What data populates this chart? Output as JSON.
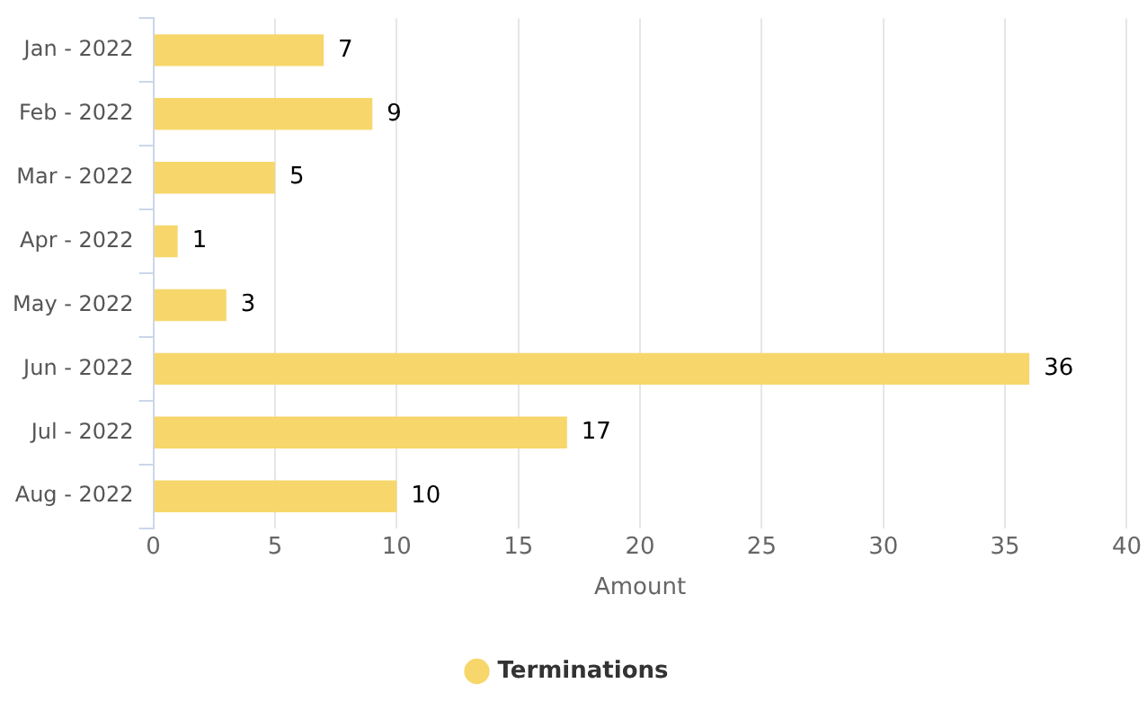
{
  "chart_data": {
    "type": "bar",
    "orientation": "horizontal",
    "categories": [
      "Jan - 2022",
      "Feb - 2022",
      "Mar - 2022",
      "Apr - 2022",
      "May - 2022",
      "Jun - 2022",
      "Jul - 2022",
      "Aug - 2022"
    ],
    "series": [
      {
        "name": "Terminations",
        "color": "#f7d76b",
        "values": [
          7,
          9,
          5,
          1,
          3,
          36,
          17,
          10
        ]
      }
    ],
    "xlabel": "Amount",
    "xlim": [
      0,
      40
    ],
    "xticks": [
      0,
      5,
      10,
      15,
      20,
      25,
      30,
      35,
      40
    ],
    "grid": "x",
    "legend": "bottom",
    "data_labels": true
  }
}
